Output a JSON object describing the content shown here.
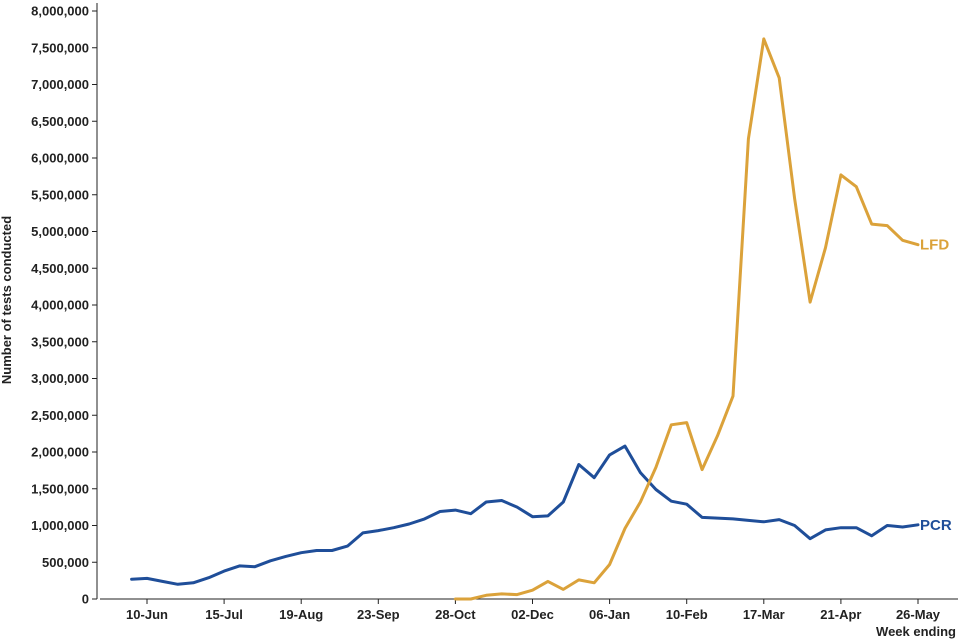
{
  "chart_data": {
    "type": "line",
    "title": "",
    "xlabel": "Week ending",
    "ylabel": "Number of tests conducted",
    "ylim": [
      0,
      8000000
    ],
    "yticks": [
      0,
      500000,
      1000000,
      1500000,
      2000000,
      2500000,
      3000000,
      3500000,
      4000000,
      4500000,
      5000000,
      5500000,
      6000000,
      6500000,
      7000000,
      7500000,
      8000000
    ],
    "ytick_labels": [
      "0",
      "500,000",
      "1,000,000",
      "1,500,000",
      "2,000,000",
      "2,500,000",
      "3,000,000",
      "3,500,000",
      "4,000,000",
      "4,500,000",
      "5,000,000",
      "5,500,000",
      "6,000,000",
      "6,500,000",
      "7,000,000",
      "7,500,000",
      "8,000,000"
    ],
    "xtick_labels": [
      "10-Jun",
      "15-Jul",
      "19-Aug",
      "23-Sep",
      "28-Oct",
      "02-Dec",
      "06-Jan",
      "10-Feb",
      "17-Mar",
      "21-Apr",
      "26-May"
    ],
    "xtick_weeks": [
      0,
      5,
      10,
      15,
      20,
      25,
      30,
      35,
      40,
      45,
      50
    ],
    "week_range": [
      -1,
      50
    ],
    "grid": false,
    "series": [
      {
        "name": "PCR",
        "color": "#1f4e99",
        "start_week": -1,
        "values": [
          270000,
          280000,
          240000,
          200000,
          220000,
          290000,
          380000,
          450000,
          440000,
          520000,
          580000,
          630000,
          660000,
          660000,
          720000,
          900000,
          930000,
          970000,
          1020000,
          1090000,
          1190000,
          1210000,
          1160000,
          1320000,
          1340000,
          1250000,
          1120000,
          1130000,
          1320000,
          1830000,
          1650000,
          1960000,
          2080000,
          1720000,
          1490000,
          1330000,
          1290000,
          1110000,
          1100000,
          1090000,
          1070000,
          1050000,
          1080000,
          1000000,
          820000,
          940000,
          970000,
          970000,
          860000,
          1000000,
          980000,
          1010000
        ]
      },
      {
        "name": "LFD",
        "color": "#dba23a",
        "start_week": 20,
        "values": [
          0,
          0,
          50000,
          70000,
          60000,
          120000,
          240000,
          130000,
          260000,
          220000,
          470000,
          960000,
          1320000,
          1790000,
          2370000,
          2400000,
          1760000,
          2220000,
          2760000,
          6260000,
          7620000,
          7090000,
          5450000,
          4040000,
          4780000,
          5770000,
          5610000,
          5100000,
          5080000,
          4880000,
          4820000
        ]
      }
    ]
  }
}
